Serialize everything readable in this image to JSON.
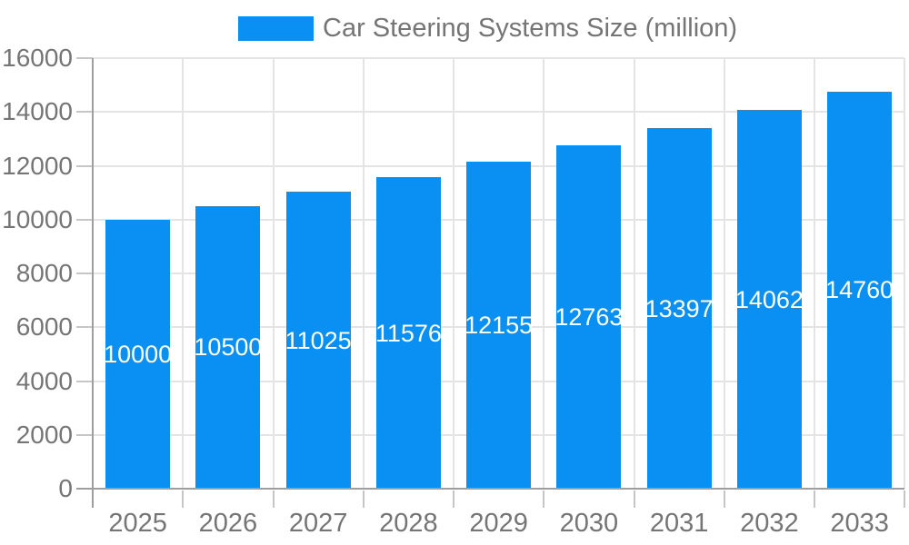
{
  "legend": {
    "label": "Car Steering Systems Size (million)"
  },
  "chart_data": {
    "type": "bar",
    "title": "",
    "xlabel": "",
    "ylabel": "",
    "categories": [
      "2025",
      "2026",
      "2027",
      "2028",
      "2029",
      "2030",
      "2031",
      "2032",
      "2033"
    ],
    "series": [
      {
        "name": "Car Steering Systems Size (million)",
        "values": [
          10000,
          10500,
          11025,
          11576,
          12155,
          12763,
          13397,
          14062,
          14760
        ]
      }
    ],
    "value_labels": [
      "10000",
      "10500",
      "11025",
      "11576",
      "12155",
      "12763",
      "13397",
      "14062",
      "14760"
    ],
    "ylim": [
      0,
      16000
    ],
    "yticks": [
      0,
      2000,
      4000,
      6000,
      8000,
      10000,
      12000,
      14000,
      16000
    ],
    "ytick_labels": [
      "0",
      "2000",
      "4000",
      "6000",
      "8000",
      "10000",
      "12000",
      "14000",
      "16000"
    ],
    "grid": true,
    "legend_position": "top-center",
    "value_label_position": "inside-center"
  },
  "colors": {
    "bar": "#0a8ff2",
    "axis_line": "#9e9e9e",
    "gridline": "#e4e4e4",
    "tick": "#c6c6c6",
    "axis_label_text": "#757575",
    "legend_text": "#757575",
    "bar_value_text": "#ffffff",
    "background": "#ffffff"
  }
}
